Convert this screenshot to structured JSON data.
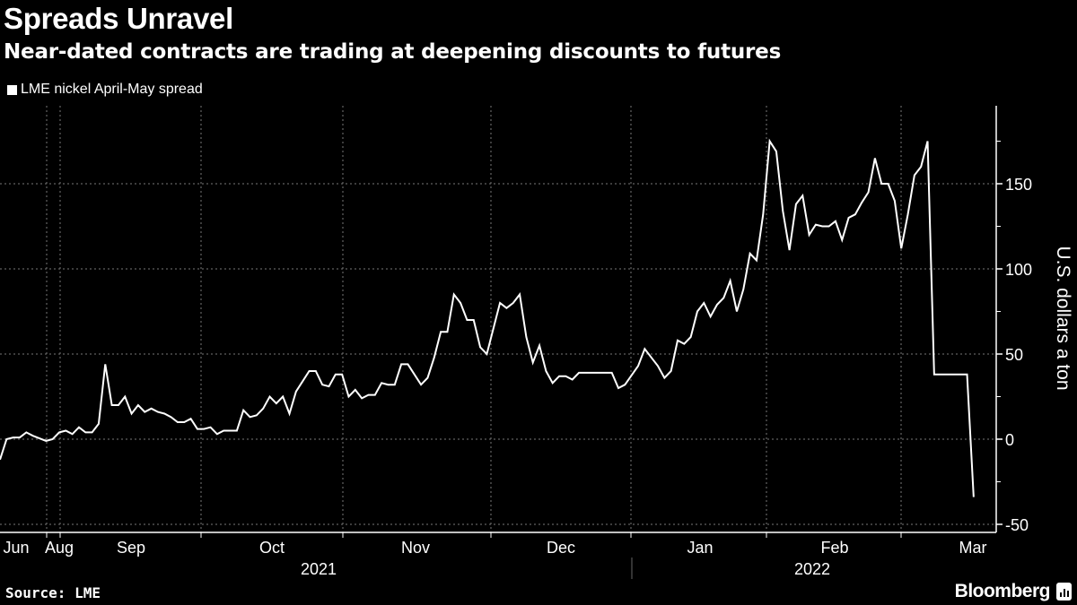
{
  "title": "Spreads Unravel",
  "subtitle": "Near-dated contracts are trading at deepening discounts to futures",
  "source": "Source: LME",
  "brand": "Bloomberg",
  "chart_data": {
    "type": "line",
    "title": "Spreads Unravel",
    "subtitle": "Near-dated contracts are trading at deepening discounts to futures",
    "ylabel": "U.S. dollars a ton",
    "xlabel": "",
    "ylim": [
      -55,
      185
    ],
    "y_ticks": [
      "150",
      "100",
      "50",
      "0",
      "-50"
    ],
    "x_tick_labels": [
      "Jun",
      "Aug",
      "Sep",
      "Oct",
      "Nov",
      "Dec",
      "Jan",
      "Feb",
      "Mar"
    ],
    "year_labels": [
      "2021",
      "2022"
    ],
    "grid": true,
    "legend_placement": "top-left",
    "colors": {
      "background": "#000000",
      "line": "#ffffff"
    },
    "series": [
      {
        "name": "LME nickel April-May spread",
        "points": [
          [
            "2021-08-20",
            -12
          ],
          [
            "2021-08-23",
            0
          ],
          [
            "2021-08-24",
            1
          ],
          [
            "2021-08-25",
            1
          ],
          [
            "2021-08-26",
            4
          ],
          [
            "2021-08-27",
            2
          ],
          [
            "2021-08-31",
            -1
          ],
          [
            "2021-09-01",
            0
          ],
          [
            "2021-09-02",
            4
          ],
          [
            "2021-09-03",
            5
          ],
          [
            "2021-09-06",
            3
          ],
          [
            "2021-09-07",
            7
          ],
          [
            "2021-09-08",
            4
          ],
          [
            "2021-09-09",
            4
          ],
          [
            "2021-09-10",
            9
          ],
          [
            "2021-09-13",
            44
          ],
          [
            "2021-09-14",
            20
          ],
          [
            "2021-09-15",
            20
          ],
          [
            "2021-09-16",
            25
          ],
          [
            "2021-09-17",
            15
          ],
          [
            "2021-09-20",
            20
          ],
          [
            "2021-09-21",
            16
          ],
          [
            "2021-09-22",
            18
          ],
          [
            "2021-09-23",
            16
          ],
          [
            "2021-09-24",
            15
          ],
          [
            "2021-09-27",
            13
          ],
          [
            "2021-09-28",
            10
          ],
          [
            "2021-09-29",
            10
          ],
          [
            "2021-09-30",
            12
          ],
          [
            "2021-10-01",
            6
          ],
          [
            "2021-10-04",
            6
          ],
          [
            "2021-10-05",
            7
          ],
          [
            "2021-10-06",
            3
          ],
          [
            "2021-10-07",
            5
          ],
          [
            "2021-10-08",
            5
          ],
          [
            "2021-10-11",
            5
          ],
          [
            "2021-10-12",
            17
          ],
          [
            "2021-10-13",
            13
          ],
          [
            "2021-10-14",
            14
          ],
          [
            "2021-10-15",
            18
          ],
          [
            "2021-10-18",
            25
          ],
          [
            "2021-10-19",
            21
          ],
          [
            "2021-10-20",
            25
          ],
          [
            "2021-10-21",
            15
          ],
          [
            "2021-10-22",
            28
          ],
          [
            "2021-10-25",
            34
          ],
          [
            "2021-10-26",
            40
          ],
          [
            "2021-10-27",
            40
          ],
          [
            "2021-10-28",
            32
          ],
          [
            "2021-10-29",
            31
          ],
          [
            "2021-11-01",
            38
          ],
          [
            "2021-11-02",
            38
          ],
          [
            "2021-11-03",
            25
          ],
          [
            "2021-11-04",
            29
          ],
          [
            "2021-11-05",
            24
          ],
          [
            "2021-11-08",
            26
          ],
          [
            "2021-11-09",
            26
          ],
          [
            "2021-11-10",
            33
          ],
          [
            "2021-11-11",
            32
          ],
          [
            "2021-11-12",
            32
          ],
          [
            "2021-11-15",
            44
          ],
          [
            "2021-11-16",
            44
          ],
          [
            "2021-11-17",
            38
          ],
          [
            "2021-11-18",
            32
          ],
          [
            "2021-11-19",
            36
          ],
          [
            "2021-11-22",
            48
          ],
          [
            "2021-11-23",
            63
          ],
          [
            "2021-11-24",
            63
          ],
          [
            "2021-11-25",
            85
          ],
          [
            "2021-11-26",
            80
          ],
          [
            "2021-11-29",
            70
          ],
          [
            "2021-11-30",
            70
          ],
          [
            "2021-12-01",
            54
          ],
          [
            "2021-12-02",
            50
          ],
          [
            "2021-12-03",
            65
          ],
          [
            "2021-12-06",
            80
          ],
          [
            "2021-12-07",
            77
          ],
          [
            "2021-12-08",
            80
          ],
          [
            "2021-12-09",
            85
          ],
          [
            "2021-12-10",
            60
          ],
          [
            "2021-12-13",
            45
          ],
          [
            "2021-12-14",
            55
          ],
          [
            "2021-12-15",
            40
          ],
          [
            "2021-12-16",
            33
          ],
          [
            "2021-12-17",
            37
          ],
          [
            "2021-12-20",
            37
          ],
          [
            "2021-12-21",
            35
          ],
          [
            "2021-12-22",
            39
          ],
          [
            "2021-12-23",
            39
          ],
          [
            "2021-12-24",
            39
          ],
          [
            "2021-12-29",
            39
          ],
          [
            "2021-12-30",
            30
          ],
          [
            "2021-12-31",
            32
          ],
          [
            "2022-01-04",
            43
          ],
          [
            "2022-01-05",
            53
          ],
          [
            "2022-01-06",
            48
          ],
          [
            "2022-01-07",
            43
          ],
          [
            "2022-01-10",
            36
          ],
          [
            "2022-01-11",
            40
          ],
          [
            "2022-01-12",
            58
          ],
          [
            "2022-01-13",
            56
          ],
          [
            "2022-01-14",
            60
          ],
          [
            "2022-01-17",
            75
          ],
          [
            "2022-01-18",
            80
          ],
          [
            "2022-01-19",
            72
          ],
          [
            "2022-01-20",
            79
          ],
          [
            "2022-01-21",
            83
          ],
          [
            "2022-01-24",
            93
          ],
          [
            "2022-01-25",
            75
          ],
          [
            "2022-01-26",
            88
          ],
          [
            "2022-01-27",
            109
          ],
          [
            "2022-01-28",
            105
          ],
          [
            "2022-01-31",
            132
          ],
          [
            "2022-02-01",
            175
          ],
          [
            "2022-02-02",
            169
          ],
          [
            "2022-02-03",
            134
          ],
          [
            "2022-02-04",
            111
          ],
          [
            "2022-02-07",
            138
          ],
          [
            "2022-02-08",
            143
          ],
          [
            "2022-02-09",
            120
          ],
          [
            "2022-02-10",
            126
          ],
          [
            "2022-02-11",
            125
          ],
          [
            "2022-02-14",
            125
          ],
          [
            "2022-02-15",
            128
          ],
          [
            "2022-02-16",
            117
          ],
          [
            "2022-02-17",
            130
          ],
          [
            "2022-02-18",
            132
          ],
          [
            "2022-02-21",
            139
          ],
          [
            "2022-02-22",
            145
          ],
          [
            "2022-02-23",
            165
          ],
          [
            "2022-02-24",
            150
          ],
          [
            "2022-02-25",
            150
          ],
          [
            "2022-02-28",
            140
          ],
          [
            "2022-03-01",
            112
          ],
          [
            "2022-03-02",
            132
          ],
          [
            "2022-03-03",
            155
          ],
          [
            "2022-03-04",
            160
          ],
          [
            "2022-03-07",
            175
          ],
          [
            "2022-03-08",
            38
          ],
          [
            "2022-03-15",
            38
          ],
          [
            "2022-03-16",
            -34
          ]
        ]
      }
    ]
  }
}
